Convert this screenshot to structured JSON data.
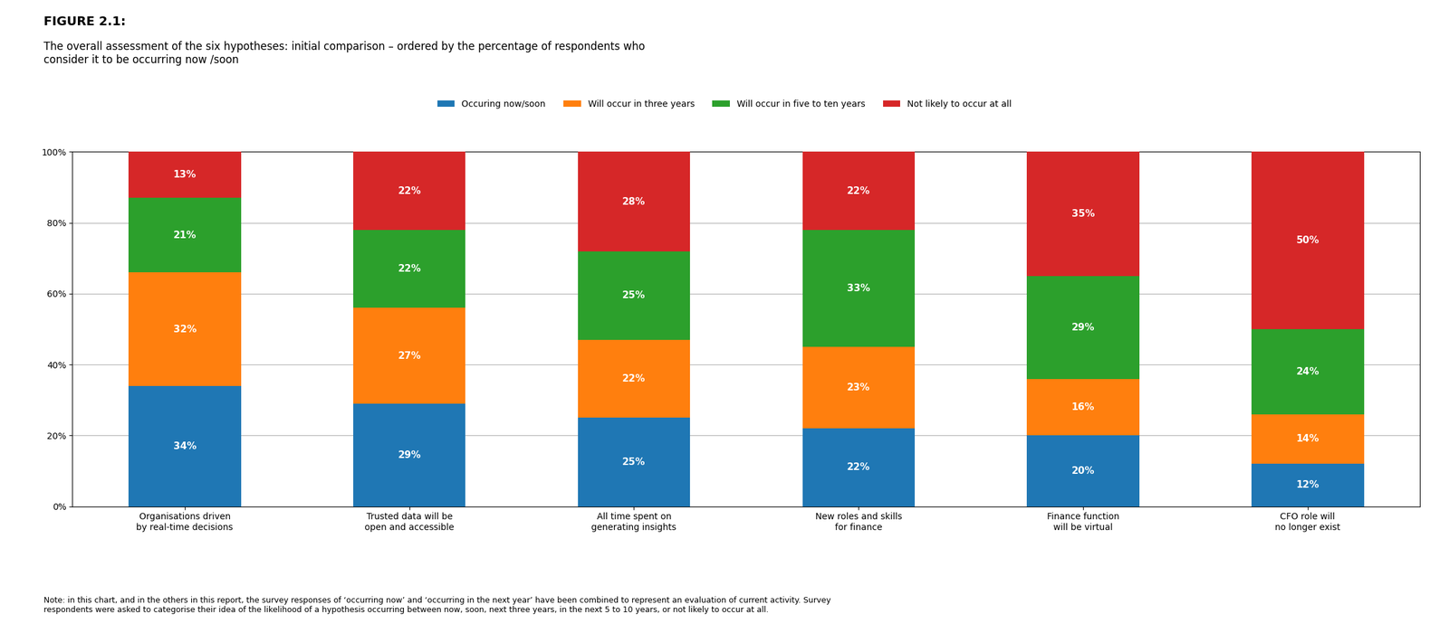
{
  "chart_data": {
    "type": "bar",
    "stacked": true,
    "title": "FIGURE 2.1:",
    "subtitle": "The overall assessment of the six hypotheses: initial comparison – ordered by the percentage of respondents who\nconsider it to be occurring now /soon",
    "annotations": [
      "Note: in this chart, and in the others in this report, the survey responses of ‘occurring now’ and ‘occurring in the next year’ have been combined to represent an evaluation of current activity. Survey\nrespondents were asked to categorise their idea of the likelihood of a hypothesis occurring between now, soon, next three years, in the next 5 to 10 years, or not likely to occur at all."
    ],
    "categories": [
      "Organisations driven\nby real-time decisions",
      "Trusted data will be\nopen and accessible",
      "All time spent on\ngenerating insights",
      "New roles and skills\nfor finance",
      "Finance function\nwill be virtual",
      "CFO role will\nno longer exist"
    ],
    "series": [
      {
        "name": "Occuring now/soon",
        "values": [
          34,
          29,
          25,
          22,
          20,
          12
        ],
        "value_labels": [
          "34%",
          "29%",
          "25%",
          "22%",
          "20%",
          "12%"
        ]
      },
      {
        "name": "Will occur in three years",
        "values": [
          32,
          27,
          22,
          23,
          16,
          14
        ],
        "value_labels": [
          "32%",
          "27%",
          "22%",
          "23%",
          "16%",
          "14%"
        ]
      },
      {
        "name": "Will occur in five to ten years",
        "values": [
          21,
          22,
          25,
          33,
          29,
          24
        ],
        "value_labels": [
          "21%",
          "22%",
          "25%",
          "33%",
          "29%",
          "24%"
        ]
      },
      {
        "name": "Not likely to occur at all",
        "values": [
          13,
          22,
          28,
          22,
          35,
          50
        ],
        "value_labels": [
          "13%",
          "22%",
          "28%",
          "22%",
          "35%",
          "50%"
        ]
      }
    ],
    "ylim": [
      0,
      100
    ],
    "yticks": [
      {
        "value": 0,
        "label": "0%"
      },
      {
        "value": 20,
        "label": "20%"
      },
      {
        "value": 40,
        "label": "40%"
      },
      {
        "value": 60,
        "label": "60%"
      },
      {
        "value": 80,
        "label": "80%"
      },
      {
        "value": 100,
        "label": "100%"
      }
    ],
    "grid": true,
    "legend": "upper center",
    "data_labels": true
  }
}
